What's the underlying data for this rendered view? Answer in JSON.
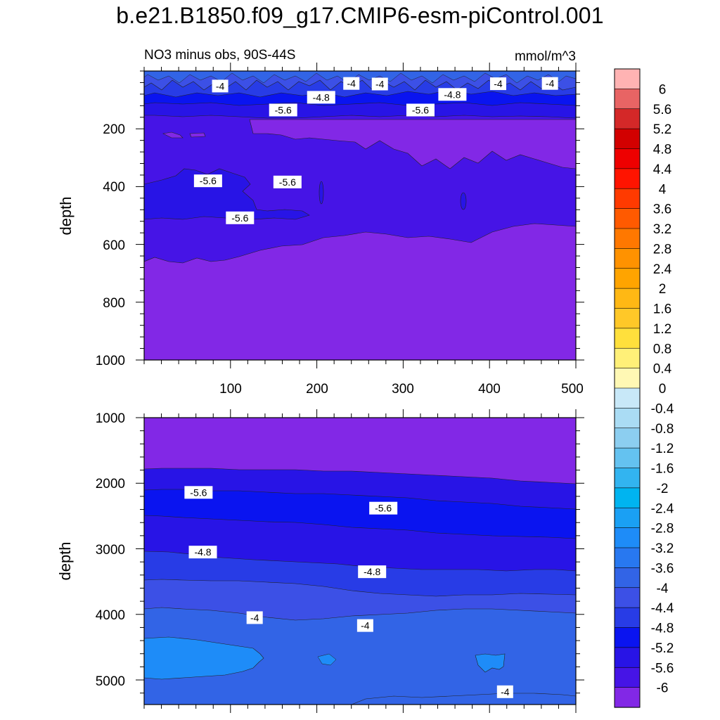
{
  "title": "b.e21.B1850.f09_g17.CMIP6-esm-piControl.001",
  "chart_data": [
    {
      "type": "contour",
      "subtitle_left": "NO3 minus obs, 90S-44S",
      "subtitle_right": "mmol/m^3",
      "xlabel": "",
      "ylabel": "depth",
      "xlim": [
        0,
        500
      ],
      "ylim": [
        1000,
        0
      ],
      "x_ticks": [
        "100",
        "200",
        "300",
        "400",
        "500"
      ],
      "y_ticks": [
        "200",
        "400",
        "600",
        "800",
        "1000"
      ],
      "contour_labels": [
        {
          "text": "-4",
          "x": 88,
          "y": 52
        },
        {
          "text": "-4",
          "x": 240,
          "y": 43
        },
        {
          "text": "-4",
          "x": 273,
          "y": 45
        },
        {
          "text": "-4",
          "x": 410,
          "y": 44
        },
        {
          "text": "-4",
          "x": 470,
          "y": 43
        },
        {
          "text": "-4.8",
          "x": 205,
          "y": 91
        },
        {
          "text": "-4.8",
          "x": 357,
          "y": 81
        },
        {
          "text": "-5.6",
          "x": 161,
          "y": 135
        },
        {
          "text": "-5.6",
          "x": 320,
          "y": 135
        },
        {
          "text": "-5.6",
          "x": 74,
          "y": 380
        },
        {
          "text": "-5.6",
          "x": 166,
          "y": 384
        },
        {
          "text": "-5.6",
          "x": 111,
          "y": 508
        }
      ]
    },
    {
      "type": "contour",
      "xlabel": "",
      "ylabel": "depth",
      "xlim": [
        0,
        500
      ],
      "ylim": [
        5375,
        1000
      ],
      "y_ticks": [
        "1000",
        "2000",
        "3000",
        "4000",
        "5000"
      ],
      "contour_labels": [
        {
          "text": "-5.6",
          "x": 63,
          "y": 2140
        },
        {
          "text": "-5.6",
          "x": 277,
          "y": 2380
        },
        {
          "text": "-4.8",
          "x": 68,
          "y": 3050
        },
        {
          "text": "-4.8",
          "x": 264,
          "y": 3350
        },
        {
          "text": "-4",
          "x": 128,
          "y": 4050
        },
        {
          "text": "-4",
          "x": 256,
          "y": 4170
        },
        {
          "text": "-4",
          "x": 418,
          "y": 5180
        }
      ]
    }
  ],
  "colorbar": {
    "labels": [
      "6",
      "5.6",
      "5.2",
      "4.8",
      "4.4",
      "4",
      "3.6",
      "3.2",
      "2.8",
      "2.4",
      "2",
      "1.6",
      "1.2",
      "0.8",
      "0.4",
      "0",
      "-0.4",
      "-0.8",
      "-1.2",
      "-1.6",
      "-2",
      "-2.4",
      "-2.8",
      "-3.2",
      "-3.6",
      "-4",
      "-4.4",
      "-4.8",
      "-5.2",
      "-5.6",
      "-6"
    ],
    "colors": [
      "#ffb3b3",
      "#e86464",
      "#d42828",
      "#d20000",
      "#ee0000",
      "#ff1400",
      "#ff3a00",
      "#ff5a00",
      "#ff7800",
      "#ff9200",
      "#ffa400",
      "#ffb814",
      "#ffc828",
      "#ffe03c",
      "#fff078",
      "#fff8b4",
      "#c8e8f8",
      "#aadcf4",
      "#8ccef0",
      "#64c2f0",
      "#32b4f0",
      "#00b4f0",
      "#1aa0f4",
      "#1e8cf8",
      "#2878f0",
      "#3264e6",
      "#3c50e6",
      "#283ce6",
      "#0a14f0",
      "#2814e6",
      "#4614e6",
      "#8228e6"
    ]
  }
}
